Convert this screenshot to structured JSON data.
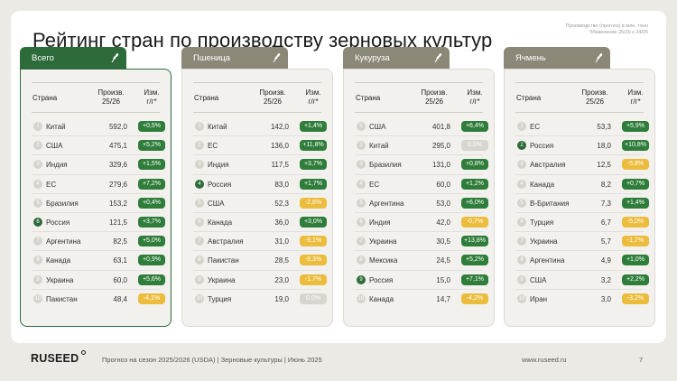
{
  "title": "Рейтинг стран по производству зерновых культур",
  "note": [
    "Производство (прогноз) в млн. тонн",
    "*Изменение 25/26 к 24/25"
  ],
  "columns": {
    "country": "Страна",
    "prod": "Произв. 25/26",
    "chg": "Изм. г/г*"
  },
  "colors": {
    "accent": "#2e6b3a",
    "positive": "#2f7d3a",
    "negative": "#ecbc3c",
    "neutral": "#d7d5cf"
  },
  "cards": [
    {
      "tab": "Всего",
      "icon": "wheat-icon",
      "rows": [
        {
          "rank": "1",
          "country": "Китай",
          "value": "592,0",
          "change": "+0,5%",
          "type": "pos"
        },
        {
          "rank": "2",
          "country": "США",
          "value": "475,1",
          "change": "+5,2%",
          "type": "pos"
        },
        {
          "rank": "3",
          "country": "Индия",
          "value": "329,6",
          "change": "+1,5%",
          "type": "pos"
        },
        {
          "rank": "4",
          "country": "ЕС",
          "value": "279,6",
          "change": "+7,2%",
          "type": "pos"
        },
        {
          "rank": "5",
          "country": "Бразилия",
          "value": "153,2",
          "change": "+0,4%",
          "type": "pos"
        },
        {
          "rank": "6",
          "country": "Россия",
          "value": "121,5",
          "change": "+3,7%",
          "type": "pos",
          "highlight": true
        },
        {
          "rank": "7",
          "country": "Аргентина",
          "value": "82,5",
          "change": "+5,0%",
          "type": "pos"
        },
        {
          "rank": "8",
          "country": "Канада",
          "value": "63,1",
          "change": "+0,9%",
          "type": "pos"
        },
        {
          "rank": "9",
          "country": "Украина",
          "value": "60,0",
          "change": "+5,6%",
          "type": "pos"
        },
        {
          "rank": "10",
          "country": "Пакистан",
          "value": "48,4",
          "change": "-4,1%",
          "type": "neg"
        }
      ]
    },
    {
      "tab": "Пшеница",
      "icon": "wheat-icon",
      "rows": [
        {
          "rank": "1",
          "country": "Китай",
          "value": "142,0",
          "change": "+1,4%",
          "type": "pos"
        },
        {
          "rank": "2",
          "country": "ЕС",
          "value": "136,0",
          "change": "+11,8%",
          "type": "pos"
        },
        {
          "rank": "3",
          "country": "Индия",
          "value": "117,5",
          "change": "+3,7%",
          "type": "pos"
        },
        {
          "rank": "4",
          "country": "Россия",
          "value": "83,0",
          "change": "+1,7%",
          "type": "pos",
          "highlight": true
        },
        {
          "rank": "5",
          "country": "США",
          "value": "52,3",
          "change": "-2,6%",
          "type": "neg"
        },
        {
          "rank": "6",
          "country": "Канада",
          "value": "36,0",
          "change": "+3,0%",
          "type": "pos"
        },
        {
          "rank": "7",
          "country": "Австралия",
          "value": "31,0",
          "change": "-9,1%",
          "type": "neg"
        },
        {
          "rank": "8",
          "country": "Пакистан",
          "value": "28,5",
          "change": "-9,3%",
          "type": "neg"
        },
        {
          "rank": "9",
          "country": "Украина",
          "value": "23,0",
          "change": "-1,7%",
          "type": "neg"
        },
        {
          "rank": "10",
          "country": "Турция",
          "value": "19,0",
          "change": "0,0%",
          "type": "zero"
        }
      ]
    },
    {
      "tab": "Кукуруза",
      "icon": "wheat-icon",
      "rows": [
        {
          "rank": "1",
          "country": "США",
          "value": "401,8",
          "change": "+6,4%",
          "type": "pos"
        },
        {
          "rank": "2",
          "country": "Китай",
          "value": "295,0",
          "change": "0,0%",
          "type": "zero"
        },
        {
          "rank": "3",
          "country": "Бразилия",
          "value": "131,0",
          "change": "+0,8%",
          "type": "pos"
        },
        {
          "rank": "4",
          "country": "ЕС",
          "value": "60,0",
          "change": "+1,2%",
          "type": "pos"
        },
        {
          "rank": "5",
          "country": "Аргентина",
          "value": "53,0",
          "change": "+6,0%",
          "type": "pos"
        },
        {
          "rank": "6",
          "country": "Индия",
          "value": "42,0",
          "change": "-0,7%",
          "type": "neg"
        },
        {
          "rank": "7",
          "country": "Украина",
          "value": "30,5",
          "change": "+13,8%",
          "type": "pos"
        },
        {
          "rank": "8",
          "country": "Мексика",
          "value": "24,5",
          "change": "+5,2%",
          "type": "pos"
        },
        {
          "rank": "9",
          "country": "Россия",
          "value": "15,0",
          "change": "+7,1%",
          "type": "pos",
          "highlight": true
        },
        {
          "rank": "10",
          "country": "Канада",
          "value": "14,7",
          "change": "-4,2%",
          "type": "neg"
        }
      ]
    },
    {
      "tab": "Ячмень",
      "icon": "wheat-icon",
      "rows": [
        {
          "rank": "1",
          "country": "ЕС",
          "value": "53,3",
          "change": "+5,9%",
          "type": "pos"
        },
        {
          "rank": "2",
          "country": "Россия",
          "value": "18,0",
          "change": "+10,8%",
          "type": "pos",
          "highlight": true
        },
        {
          "rank": "3",
          "country": "Австралия",
          "value": "12,5",
          "change": "-5,8%",
          "type": "neg"
        },
        {
          "rank": "4",
          "country": "Канада",
          "value": "8,2",
          "change": "+0,7%",
          "type": "pos"
        },
        {
          "rank": "5",
          "country": "В-Британия",
          "value": "7,3",
          "change": "+1,4%",
          "type": "pos"
        },
        {
          "rank": "6",
          "country": "Турция",
          "value": "6,7",
          "change": "-5,0%",
          "type": "neg"
        },
        {
          "rank": "7",
          "country": "Украина",
          "value": "5,7",
          "change": "-1,7%",
          "type": "neg"
        },
        {
          "rank": "8",
          "country": "Аргентина",
          "value": "4,9",
          "change": "+1,0%",
          "type": "pos"
        },
        {
          "rank": "9",
          "country": "США",
          "value": "3,2",
          "change": "+2,2%",
          "type": "pos"
        },
        {
          "rank": "10",
          "country": "Иран",
          "value": "3,0",
          "change": "-3,2%",
          "type": "neg"
        }
      ]
    }
  ],
  "footer": {
    "logo": "RUSEED",
    "text": "Прогноз на сезон 2025/2026 (USDA)  |  Зерновые культуры  |  Июнь 2025",
    "site": "www.ruseed.ru",
    "page": "7"
  }
}
